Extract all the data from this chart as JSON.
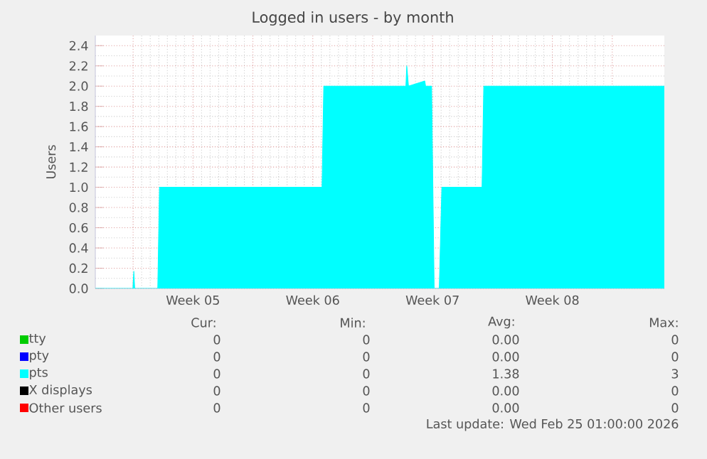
{
  "chart_data": {
    "type": "area",
    "title": "Logged in users - by month",
    "ylabel": "Users",
    "grid": true,
    "legend": "bottom",
    "x": [
      "2026-01-22T19:00",
      "2026-01-24T23:48",
      "2026-01-25T01:00",
      "2026-01-25T02:12",
      "2026-01-26T10:36",
      "2026-01-26T13:00",
      "2026-02-05T01:00",
      "2026-02-05T03:24",
      "2026-02-09T22:36",
      "2026-02-09T23:48",
      "2026-02-10T02:12",
      "2026-02-11T01:00",
      "2026-02-11T02:12",
      "2026-02-11T10:36",
      "2026-02-11T14:12",
      "2026-02-11T21:24",
      "2026-02-12T01:00",
      "2026-02-14T09:24",
      "2026-02-14T11:48",
      "2026-02-25T01:00"
    ],
    "xlim": [
      "2026-01-22T19:00",
      "2026-02-25T01:00"
    ],
    "xticks": [
      {
        "value": "2026-01-25",
        "label": null
      },
      {
        "value": "2026-01-28T12:00",
        "label": "Week 05"
      },
      {
        "value": "2026-02-01",
        "label": null
      },
      {
        "value": "2026-02-04T12:00",
        "label": "Week 06"
      },
      {
        "value": "2026-02-08",
        "label": null
      },
      {
        "value": "2026-02-11T12:00",
        "label": "Week 07"
      },
      {
        "value": "2026-02-15",
        "label": null
      },
      {
        "value": "2026-02-18T12:00",
        "label": "Week 08"
      },
      {
        "value": "2026-02-22",
        "label": null
      }
    ],
    "ylim": [
      0,
      2.5
    ],
    "yticks": [
      {
        "value": 0,
        "label": "0.0"
      },
      {
        "value": 0.2,
        "label": "0.2"
      },
      {
        "value": 0.4,
        "label": "0.4"
      },
      {
        "value": 0.6,
        "label": "0.6"
      },
      {
        "value": 0.8,
        "label": "0.8"
      },
      {
        "value": 1,
        "label": "1.0"
      },
      {
        "value": 1.2,
        "label": "1.2"
      },
      {
        "value": 1.4,
        "label": "1.4"
      },
      {
        "value": 1.6,
        "label": "1.6"
      },
      {
        "value": 1.8,
        "label": "1.8"
      },
      {
        "value": 2,
        "label": "2.0"
      },
      {
        "value": 2.2,
        "label": "2.2"
      },
      {
        "value": 2.4,
        "label": "2.4"
      }
    ],
    "series": [
      {
        "name": "tty",
        "color": "#00cc00",
        "values": [
          null,
          null,
          null,
          null,
          null,
          null,
          null,
          null,
          null,
          null,
          null,
          null,
          null,
          null,
          null,
          null,
          null,
          null,
          null,
          null
        ]
      },
      {
        "name": "pty",
        "color": "#0000ff",
        "values": [
          null,
          null,
          null,
          null,
          null,
          null,
          null,
          null,
          null,
          null,
          null,
          null,
          null,
          null,
          null,
          null,
          null,
          null,
          null,
          null
        ]
      },
      {
        "name": "pts",
        "color": "#00ffff",
        "values": [
          0,
          0,
          0.17,
          0,
          0,
          1,
          1,
          2,
          2,
          2.2,
          2,
          2.05,
          2,
          2,
          0,
          0,
          1,
          1,
          2,
          2
        ]
      },
      {
        "name": "X displays",
        "color": "#000000",
        "values": [
          null,
          null,
          null,
          null,
          null,
          null,
          null,
          null,
          null,
          null,
          null,
          null,
          null,
          null,
          null,
          null,
          null,
          null,
          null,
          null
        ]
      },
      {
        "name": "Other users",
        "color": "#ff0000",
        "values": [
          null,
          null,
          null,
          null,
          null,
          null,
          null,
          null,
          null,
          null,
          null,
          null,
          null,
          null,
          null,
          null,
          null,
          null,
          null,
          null
        ]
      }
    ],
    "annotations": [
      "Cur:",
      "Min:",
      "Avg:",
      "Max:",
      "0",
      "0",
      "0.00",
      "0",
      "0",
      "0",
      "0.00",
      "0",
      "0",
      "0",
      "1.38",
      "3",
      "0",
      "0",
      "0.00",
      "0",
      "0",
      "0",
      "0.00",
      "0",
      "Last update: Wed Feb 25 01:00:00 2026"
    ]
  }
}
